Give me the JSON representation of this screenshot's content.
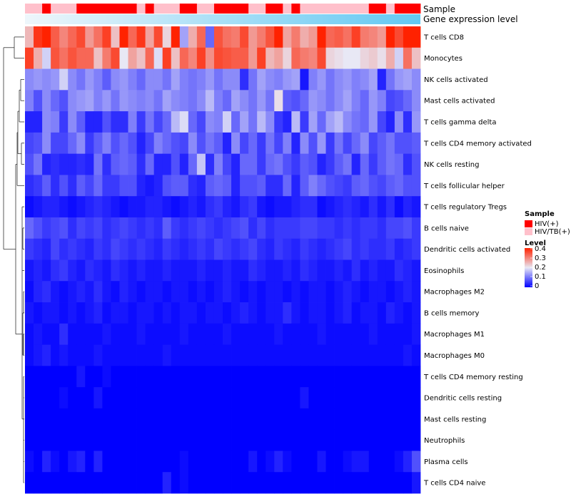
{
  "chart_data": {
    "type": "heatmap",
    "title": "",
    "rows": [
      "T cells CD8",
      "Monocytes",
      "NK cells activated",
      "Mast cells activated",
      "T cells gamma delta",
      "T cells CD4 memory activated",
      "NK cells resting",
      "T cells follicular helper",
      "T cells regulatory  Tregs",
      "B cells naive",
      "Dendritic cells activated",
      "Eosinophils",
      "Macrophages M2",
      "B cells memory",
      "Macrophages M1",
      "Macrophages M0",
      "T cells CD4 memory resting",
      "Dendritic cells resting",
      "Mast cells resting",
      "Neutrophils",
      "Plasma cells",
      "T cells CD4 naive"
    ],
    "columns": 46,
    "values": [
      [
        0.25,
        0.38,
        0.42,
        0.34,
        0.3,
        0.33,
        0.36,
        0.28,
        0.32,
        0.37,
        0.24,
        0.42,
        0.33,
        0.38,
        0.27,
        0.36,
        0.22,
        0.4,
        0.14,
        0.26,
        0.33,
        0.09,
        0.35,
        0.32,
        0.31,
        0.36,
        0.28,
        0.31,
        0.35,
        0.4,
        0.27,
        0.31,
        0.26,
        0.28,
        0.42,
        0.33,
        0.34,
        0.32,
        0.37,
        0.31,
        0.3,
        0.28,
        0.41,
        0.36,
        0.42,
        0.4
      ],
      [
        0.37,
        0.26,
        0.18,
        0.35,
        0.32,
        0.35,
        0.33,
        0.33,
        0.24,
        0.31,
        0.36,
        0.2,
        0.27,
        0.24,
        0.33,
        0.19,
        0.37,
        0.24,
        0.33,
        0.3,
        0.37,
        0.29,
        0.36,
        0.35,
        0.34,
        0.34,
        0.28,
        0.37,
        0.25,
        0.27,
        0.22,
        0.33,
        0.31,
        0.3,
        0.36,
        0.22,
        0.21,
        0.2,
        0.2,
        0.22,
        0.23,
        0.21,
        0.26,
        0.18,
        0.32,
        0.24
      ],
      [
        0.12,
        0.13,
        0.12,
        0.13,
        0.18,
        0.12,
        0.1,
        0.13,
        0.11,
        0.08,
        0.12,
        0.13,
        0.11,
        0.09,
        0.12,
        0.12,
        0.1,
        0.14,
        0.11,
        0.1,
        0.11,
        0.13,
        0.1,
        0.12,
        0.12,
        0.04,
        0.1,
        0.14,
        0.12,
        0.11,
        0.13,
        0.14,
        0.02,
        0.11,
        0.13,
        0.1,
        0.12,
        0.13,
        0.11,
        0.12,
        0.14,
        0.03,
        0.1,
        0.13,
        0.14,
        0.12
      ],
      [
        0.11,
        0.07,
        0.12,
        0.09,
        0.07,
        0.12,
        0.13,
        0.14,
        0.11,
        0.13,
        0.1,
        0.13,
        0.12,
        0.11,
        0.12,
        0.1,
        0.14,
        0.12,
        0.11,
        0.1,
        0.12,
        0.16,
        0.11,
        0.09,
        0.14,
        0.12,
        0.1,
        0.13,
        0.1,
        0.21,
        0.08,
        0.07,
        0.09,
        0.13,
        0.12,
        0.1,
        0.12,
        0.14,
        0.11,
        0.09,
        0.13,
        0.11,
        0.06,
        0.07,
        0.09,
        0.12
      ],
      [
        0.03,
        0.03,
        0.12,
        0.11,
        0.05,
        0.12,
        0.08,
        0.03,
        0.03,
        0.07,
        0.04,
        0.04,
        0.11,
        0.05,
        0.1,
        0.06,
        0.09,
        0.16,
        0.19,
        0.09,
        0.06,
        0.12,
        0.11,
        0.18,
        0.09,
        0.14,
        0.1,
        0.16,
        0.12,
        0.05,
        0.03,
        0.16,
        0.05,
        0.14,
        0.09,
        0.14,
        0.16,
        0.12,
        0.1,
        0.09,
        0.13,
        0.06,
        0.03,
        0.12,
        0.04,
        0.13
      ],
      [
        0.06,
        0.07,
        0.12,
        0.06,
        0.06,
        0.09,
        0.12,
        0.05,
        0.08,
        0.11,
        0.07,
        0.09,
        0.07,
        0.03,
        0.06,
        0.11,
        0.09,
        0.07,
        0.06,
        0.12,
        0.07,
        0.1,
        0.08,
        0.03,
        0.12,
        0.06,
        0.09,
        0.05,
        0.1,
        0.06,
        0.11,
        0.03,
        0.12,
        0.07,
        0.13,
        0.05,
        0.1,
        0.06,
        0.09,
        0.12,
        0.06,
        0.08,
        0.1,
        0.07,
        0.07,
        0.08
      ],
      [
        0.07,
        0.1,
        0.03,
        0.04,
        0.03,
        0.03,
        0.04,
        0.03,
        0.1,
        0.04,
        0.08,
        0.09,
        0.08,
        0.04,
        0.09,
        0.03,
        0.03,
        0.07,
        0.03,
        0.09,
        0.17,
        0.04,
        0.11,
        0.06,
        0.03,
        0.09,
        0.09,
        0.05,
        0.09,
        0.1,
        0.07,
        0.05,
        0.08,
        0.07,
        0.03,
        0.05,
        0.08,
        0.1,
        0.03,
        0.09,
        0.05,
        0.08,
        0.1,
        0.09,
        0.04,
        0.07
      ],
      [
        0.04,
        0.05,
        0.08,
        0.04,
        0.07,
        0.04,
        0.08,
        0.06,
        0.09,
        0.05,
        0.05,
        0.07,
        0.07,
        0.03,
        0.02,
        0.03,
        0.07,
        0.08,
        0.08,
        0.04,
        0.03,
        0.08,
        0.09,
        0.08,
        0.03,
        0.07,
        0.07,
        0.08,
        0.04,
        0.04,
        0.09,
        0.03,
        0.08,
        0.11,
        0.09,
        0.07,
        0.06,
        0.05,
        0.08,
        0.09,
        0.07,
        0.06,
        0.08,
        0.09,
        0.07,
        0.07
      ],
      [
        0.01,
        0.02,
        0.03,
        0.03,
        0.02,
        0.01,
        0.02,
        0.03,
        0.04,
        0.03,
        0.02,
        0.01,
        0.02,
        0.02,
        0.03,
        0.03,
        0.02,
        0.01,
        0.02,
        0.03,
        0.02,
        0.04,
        0.05,
        0.03,
        0.02,
        0.04,
        0.05,
        0.02,
        0.01,
        0.02,
        0.02,
        0.03,
        0.04,
        0.04,
        0.01,
        0.02,
        0.03,
        0.04,
        0.03,
        0.02,
        0.04,
        0.02,
        0.04,
        0.01,
        0.03,
        0.02
      ],
      [
        0.09,
        0.07,
        0.05,
        0.06,
        0.07,
        0.04,
        0.06,
        0.05,
        0.06,
        0.04,
        0.05,
        0.06,
        0.05,
        0.04,
        0.05,
        0.04,
        0.08,
        0.05,
        0.04,
        0.05,
        0.06,
        0.05,
        0.04,
        0.05,
        0.06,
        0.07,
        0.04,
        0.06,
        0.04,
        0.05,
        0.05,
        0.05,
        0.06,
        0.06,
        0.05,
        0.05,
        0.04,
        0.05,
        0.04,
        0.05,
        0.05,
        0.04,
        0.06,
        0.06,
        0.07,
        0.05
      ],
      [
        0.05,
        0.04,
        0.03,
        0.06,
        0.04,
        0.05,
        0.04,
        0.03,
        0.05,
        0.04,
        0.06,
        0.05,
        0.04,
        0.05,
        0.04,
        0.03,
        0.05,
        0.04,
        0.03,
        0.04,
        0.05,
        0.04,
        0.06,
        0.05,
        0.04,
        0.05,
        0.06,
        0.04,
        0.03,
        0.05,
        0.04,
        0.03,
        0.05,
        0.04,
        0.03,
        0.04,
        0.05,
        0.06,
        0.04,
        0.05,
        0.04,
        0.04,
        0.05,
        0.03,
        0.04,
        0.05
      ],
      [
        0.02,
        0.03,
        0.02,
        0.04,
        0.05,
        0.03,
        0.02,
        0.04,
        0.03,
        0.02,
        0.04,
        0.03,
        0.02,
        0.03,
        0.02,
        0.02,
        0.03,
        0.02,
        0.02,
        0.02,
        0.03,
        0.02,
        0.02,
        0.03,
        0.02,
        0.02,
        0.04,
        0.03,
        0.02,
        0.02,
        0.03,
        0.02,
        0.04,
        0.03,
        0.02,
        0.02,
        0.03,
        0.02,
        0.04,
        0.02,
        0.03,
        0.02,
        0.02,
        0.04,
        0.03,
        0.02
      ],
      [
        0.01,
        0.03,
        0.04,
        0.02,
        0.01,
        0.02,
        0.03,
        0.02,
        0.04,
        0.02,
        0.01,
        0.03,
        0.02,
        0.01,
        0.02,
        0.02,
        0.01,
        0.02,
        0.02,
        0.01,
        0.02,
        0.01,
        0.02,
        0.03,
        0.02,
        0.01,
        0.02,
        0.01,
        0.02,
        0.02,
        0.01,
        0.02,
        0.01,
        0.02,
        0.02,
        0.01,
        0.02,
        0.03,
        0.02,
        0.01,
        0.02,
        0.02,
        0.01,
        0.02,
        0.03,
        0.02
      ],
      [
        0.02,
        0.01,
        0.02,
        0.02,
        0.01,
        0.02,
        0.01,
        0.02,
        0.03,
        0.01,
        0.02,
        0.02,
        0.01,
        0.02,
        0.02,
        0.01,
        0.02,
        0.01,
        0.02,
        0.02,
        0.01,
        0.02,
        0.02,
        0.01,
        0.02,
        0.03,
        0.02,
        0.01,
        0.02,
        0.02,
        0.04,
        0.02,
        0.01,
        0.02,
        0.02,
        0.01,
        0.02,
        0.03,
        0.01,
        0.02,
        0.02,
        0.01,
        0.03,
        0.02,
        0.01,
        0.02
      ],
      [
        0.01,
        0.02,
        0.01,
        0.01,
        0.04,
        0.01,
        0.01,
        0.01,
        0.01,
        0.02,
        0.01,
        0.01,
        0.01,
        0.02,
        0.01,
        0.01,
        0.01,
        0.01,
        0.02,
        0.01,
        0.01,
        0.01,
        0.01,
        0.02,
        0.01,
        0.01,
        0.01,
        0.01,
        0.01,
        0.02,
        0.01,
        0.01,
        0.01,
        0.01,
        0.02,
        0.01,
        0.01,
        0.01,
        0.01,
        0.01,
        0.02,
        0.01,
        0.01,
        0.01,
        0.01,
        0.02
      ],
      [
        0.01,
        0.02,
        0.03,
        0.01,
        0.02,
        0.01,
        0.01,
        0.01,
        0.02,
        0.01,
        0.01,
        0.01,
        0.01,
        0.01,
        0.01,
        0.01,
        0.02,
        0.01,
        0.01,
        0.01,
        0.01,
        0.01,
        0.01,
        0.01,
        0.01,
        0.01,
        0.01,
        0.01,
        0.01,
        0.01,
        0.01,
        0.01,
        0.01,
        0.01,
        0.01,
        0.01,
        0.01,
        0.01,
        0.01,
        0.01,
        0.01,
        0.01,
        0.01,
        0.01,
        0.02,
        0.01
      ],
      [
        0.0,
        0.0,
        0.0,
        0.0,
        0.0,
        0.0,
        0.02,
        0.0,
        0.0,
        0.01,
        0.0,
        0.0,
        0.0,
        0.0,
        0.0,
        0.0,
        0.0,
        0.0,
        0.0,
        0.0,
        0.0,
        0.0,
        0.0,
        0.0,
        0.0,
        0.0,
        0.0,
        0.0,
        0.0,
        0.0,
        0.0,
        0.0,
        0.0,
        0.0,
        0.0,
        0.0,
        0.0,
        0.0,
        0.0,
        0.0,
        0.0,
        0.0,
        0.0,
        0.0,
        0.0,
        0.0
      ],
      [
        0.0,
        0.0,
        0.0,
        0.0,
        0.01,
        0.0,
        0.0,
        0.0,
        0.02,
        0.0,
        0.0,
        0.0,
        0.0,
        0.0,
        0.0,
        0.0,
        0.0,
        0.0,
        0.0,
        0.0,
        0.0,
        0.0,
        0.0,
        0.0,
        0.0,
        0.0,
        0.0,
        0.0,
        0.0,
        0.0,
        0.0,
        0.0,
        0.02,
        0.0,
        0.0,
        0.0,
        0.0,
        0.0,
        0.0,
        0.0,
        0.0,
        0.0,
        0.0,
        0.0,
        0.0,
        0.0
      ],
      [
        0.0,
        0.0,
        0.0,
        0.0,
        0.0,
        0.0,
        0.0,
        0.0,
        0.0,
        0.0,
        0.0,
        0.0,
        0.0,
        0.0,
        0.0,
        0.0,
        0.0,
        0.0,
        0.0,
        0.0,
        0.0,
        0.0,
        0.0,
        0.0,
        0.0,
        0.0,
        0.0,
        0.0,
        0.0,
        0.0,
        0.0,
        0.0,
        0.0,
        0.0,
        0.0,
        0.0,
        0.0,
        0.0,
        0.0,
        0.0,
        0.0,
        0.0,
        0.0,
        0.0,
        0.0,
        0.0
      ],
      [
        0.0,
        0.0,
        0.0,
        0.0,
        0.0,
        0.0,
        0.0,
        0.0,
        0.0,
        0.0,
        0.0,
        0.0,
        0.0,
        0.0,
        0.0,
        0.0,
        0.0,
        0.0,
        0.0,
        0.0,
        0.0,
        0.0,
        0.0,
        0.0,
        0.0,
        0.0,
        0.0,
        0.0,
        0.0,
        0.0,
        0.0,
        0.0,
        0.0,
        0.0,
        0.0,
        0.0,
        0.0,
        0.0,
        0.0,
        0.0,
        0.0,
        0.0,
        0.0,
        0.0,
        0.0,
        0.0
      ],
      [
        0.01,
        0.0,
        0.03,
        0.01,
        0.0,
        0.02,
        0.03,
        0.0,
        0.03,
        0.0,
        0.0,
        0.0,
        0.0,
        0.0,
        0.0,
        0.0,
        0.0,
        0.0,
        0.01,
        0.0,
        0.0,
        0.0,
        0.0,
        0.0,
        0.0,
        0.0,
        0.02,
        0.0,
        0.01,
        0.03,
        0.01,
        0.0,
        0.0,
        0.0,
        0.02,
        0.0,
        0.0,
        0.01,
        0.02,
        0.02,
        0.0,
        0.0,
        0.0,
        0.01,
        0.03,
        0.07
      ],
      [
        0.0,
        0.0,
        0.0,
        0.0,
        0.0,
        0.0,
        0.0,
        0.0,
        0.0,
        0.0,
        0.0,
        0.0,
        0.0,
        0.0,
        0.0,
        0.0,
        0.03,
        0.0,
        0.01,
        0.0,
        0.0,
        0.0,
        0.0,
        0.0,
        0.0,
        0.0,
        0.0,
        0.0,
        0.0,
        0.0,
        0.0,
        0.0,
        0.0,
        0.0,
        0.0,
        0.0,
        0.0,
        0.0,
        0.0,
        0.0,
        0.0,
        0.0,
        0.0,
        0.0,
        0.0,
        0.02
      ]
    ],
    "color_scale": {
      "min": 0,
      "max": 0.4,
      "stops": [
        {
          "value": 0,
          "color": "#0000ff"
        },
        {
          "value": 0.2,
          "color": "#e8e8f5"
        },
        {
          "value": 0.4,
          "color": "#ff2200"
        }
      ]
    },
    "annotations": [
      {
        "name": "Sample",
        "values": [
          "HIV/TB(+)",
          "HIV/TB(+)",
          "HIV(+)",
          "HIV/TB(+)",
          "HIV/TB(+)",
          "HIV/TB(+)",
          "HIV(+)",
          "HIV(+)",
          "HIV(+)",
          "HIV(+)",
          "HIV(+)",
          "HIV(+)",
          "HIV(+)",
          "HIV/TB(+)",
          "HIV(+)",
          "HIV/TB(+)",
          "HIV/TB(+)",
          "HIV/TB(+)",
          "HIV(+)",
          "HIV(+)",
          "HIV/TB(+)",
          "HIV/TB(+)",
          "HIV(+)",
          "HIV(+)",
          "HIV(+)",
          "HIV(+)",
          "HIV/TB(+)",
          "HIV/TB(+)",
          "HIV(+)",
          "HIV(+)",
          "HIV/TB(+)",
          "HIV(+)",
          "HIV/TB(+)",
          "HIV/TB(+)",
          "HIV/TB(+)",
          "HIV/TB(+)",
          "HIV/TB(+)",
          "HIV/TB(+)",
          "HIV/TB(+)",
          "HIV/TB(+)",
          "HIV(+)",
          "HIV(+)",
          "HIV/TB(+)",
          "HIV(+)",
          "HIV(+)",
          "HIV(+)"
        ]
      },
      {
        "name": "Gene expression level",
        "gradient": [
          "#eef6fb",
          "#62c8f2"
        ]
      }
    ],
    "legend": {
      "sample_title": "Sample",
      "sample_entries": [
        {
          "label": "HIV(+)",
          "color": "#ff0000"
        },
        {
          "label": "HIV/TB(+)",
          "color": "#ffc0cb"
        }
      ],
      "level_title": "Level",
      "level_ticks": [
        "0.4",
        "0.3",
        "0.2",
        "0.1",
        "0"
      ],
      "position": "right"
    }
  }
}
